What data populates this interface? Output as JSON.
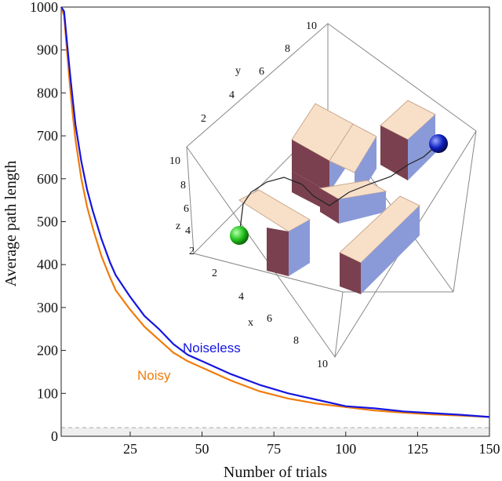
{
  "chart_data": {
    "type": "line",
    "title": "",
    "xlabel": "Number of trials",
    "ylabel": "Average path length",
    "xlim": [
      1,
      150
    ],
    "ylim": [
      0,
      1000
    ],
    "xticks": [
      25,
      50,
      75,
      100,
      125,
      150
    ],
    "yticks": [
      0,
      100,
      200,
      300,
      400,
      500,
      600,
      700,
      800,
      900,
      1000
    ],
    "reference_line": {
      "y": 20,
      "style": "dashed",
      "shaded_below": true
    },
    "series": [
      {
        "name": "Noiseless",
        "color": "#1515e0",
        "x": [
          1,
          2,
          3,
          4,
          5,
          6,
          8,
          10,
          12,
          15,
          18,
          20,
          25,
          30,
          35,
          40,
          45,
          50,
          60,
          70,
          80,
          90,
          100,
          110,
          120,
          130,
          140,
          150
        ],
        "y": [
          1000,
          990,
          920,
          850,
          785,
          725,
          640,
          575,
          525,
          460,
          405,
          375,
          325,
          280,
          250,
          215,
          190,
          175,
          145,
          120,
          100,
          85,
          70,
          65,
          58,
          54,
          50,
          45
        ]
      },
      {
        "name": "Noisy",
        "color": "#f07c0a",
        "x": [
          1,
          2,
          3,
          4,
          5,
          6,
          8,
          10,
          12,
          15,
          18,
          20,
          25,
          30,
          35,
          40,
          45,
          50,
          60,
          70,
          80,
          90,
          100,
          110,
          120,
          130,
          140,
          150
        ],
        "y": [
          1000,
          980,
          900,
          820,
          750,
          690,
          600,
          535,
          485,
          420,
          370,
          340,
          295,
          255,
          225,
          195,
          175,
          160,
          130,
          105,
          88,
          76,
          68,
          60,
          55,
          51,
          48,
          45
        ]
      }
    ]
  },
  "inset": {
    "axis_labels": {
      "x": "x",
      "y": "y",
      "z": "z"
    },
    "x_ticks": [
      "2",
      "4",
      "6",
      "8",
      "10"
    ],
    "y_ticks": [
      "2",
      "4",
      "6",
      "8",
      "10"
    ],
    "z_ticks": [
      "2",
      "4",
      "6",
      "8",
      "10"
    ],
    "start_marker_color": "#22c21c",
    "goal_marker_color": "#1020c0",
    "block_top_color": "#f8e0c8",
    "block_side_color": "#7a4050",
    "block_front_color": "#8a9ad8"
  }
}
